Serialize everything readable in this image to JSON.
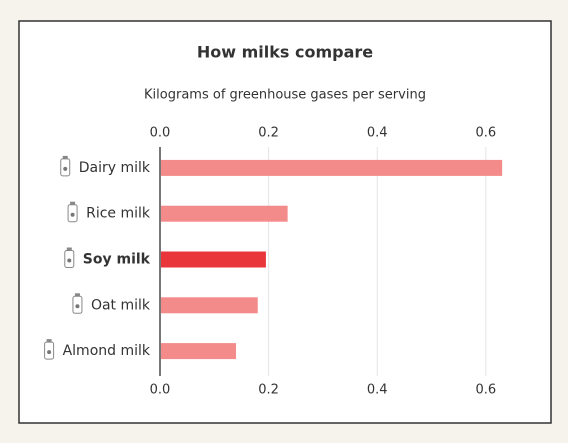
{
  "chart_data": {
    "type": "barh",
    "title": "How milks compare",
    "subtitle": "Kilograms of greenhouse gases per serving",
    "categories": [
      "Dairy milk",
      "Rice milk",
      "Soy milk",
      "Oat milk",
      "Almond milk"
    ],
    "values": [
      0.63,
      0.235,
      0.195,
      0.18,
      0.14
    ],
    "colors": [
      "#f48b8b",
      "#f48b8b",
      "#e8363b",
      "#f48b8b",
      "#f48b8b"
    ],
    "highlight_index": 2,
    "xlim": [
      0,
      0.65
    ],
    "xticks": [
      {
        "value": 0,
        "label": "0.0"
      },
      0.2,
      0.4,
      0.6
    ],
    "grid": true
  }
}
